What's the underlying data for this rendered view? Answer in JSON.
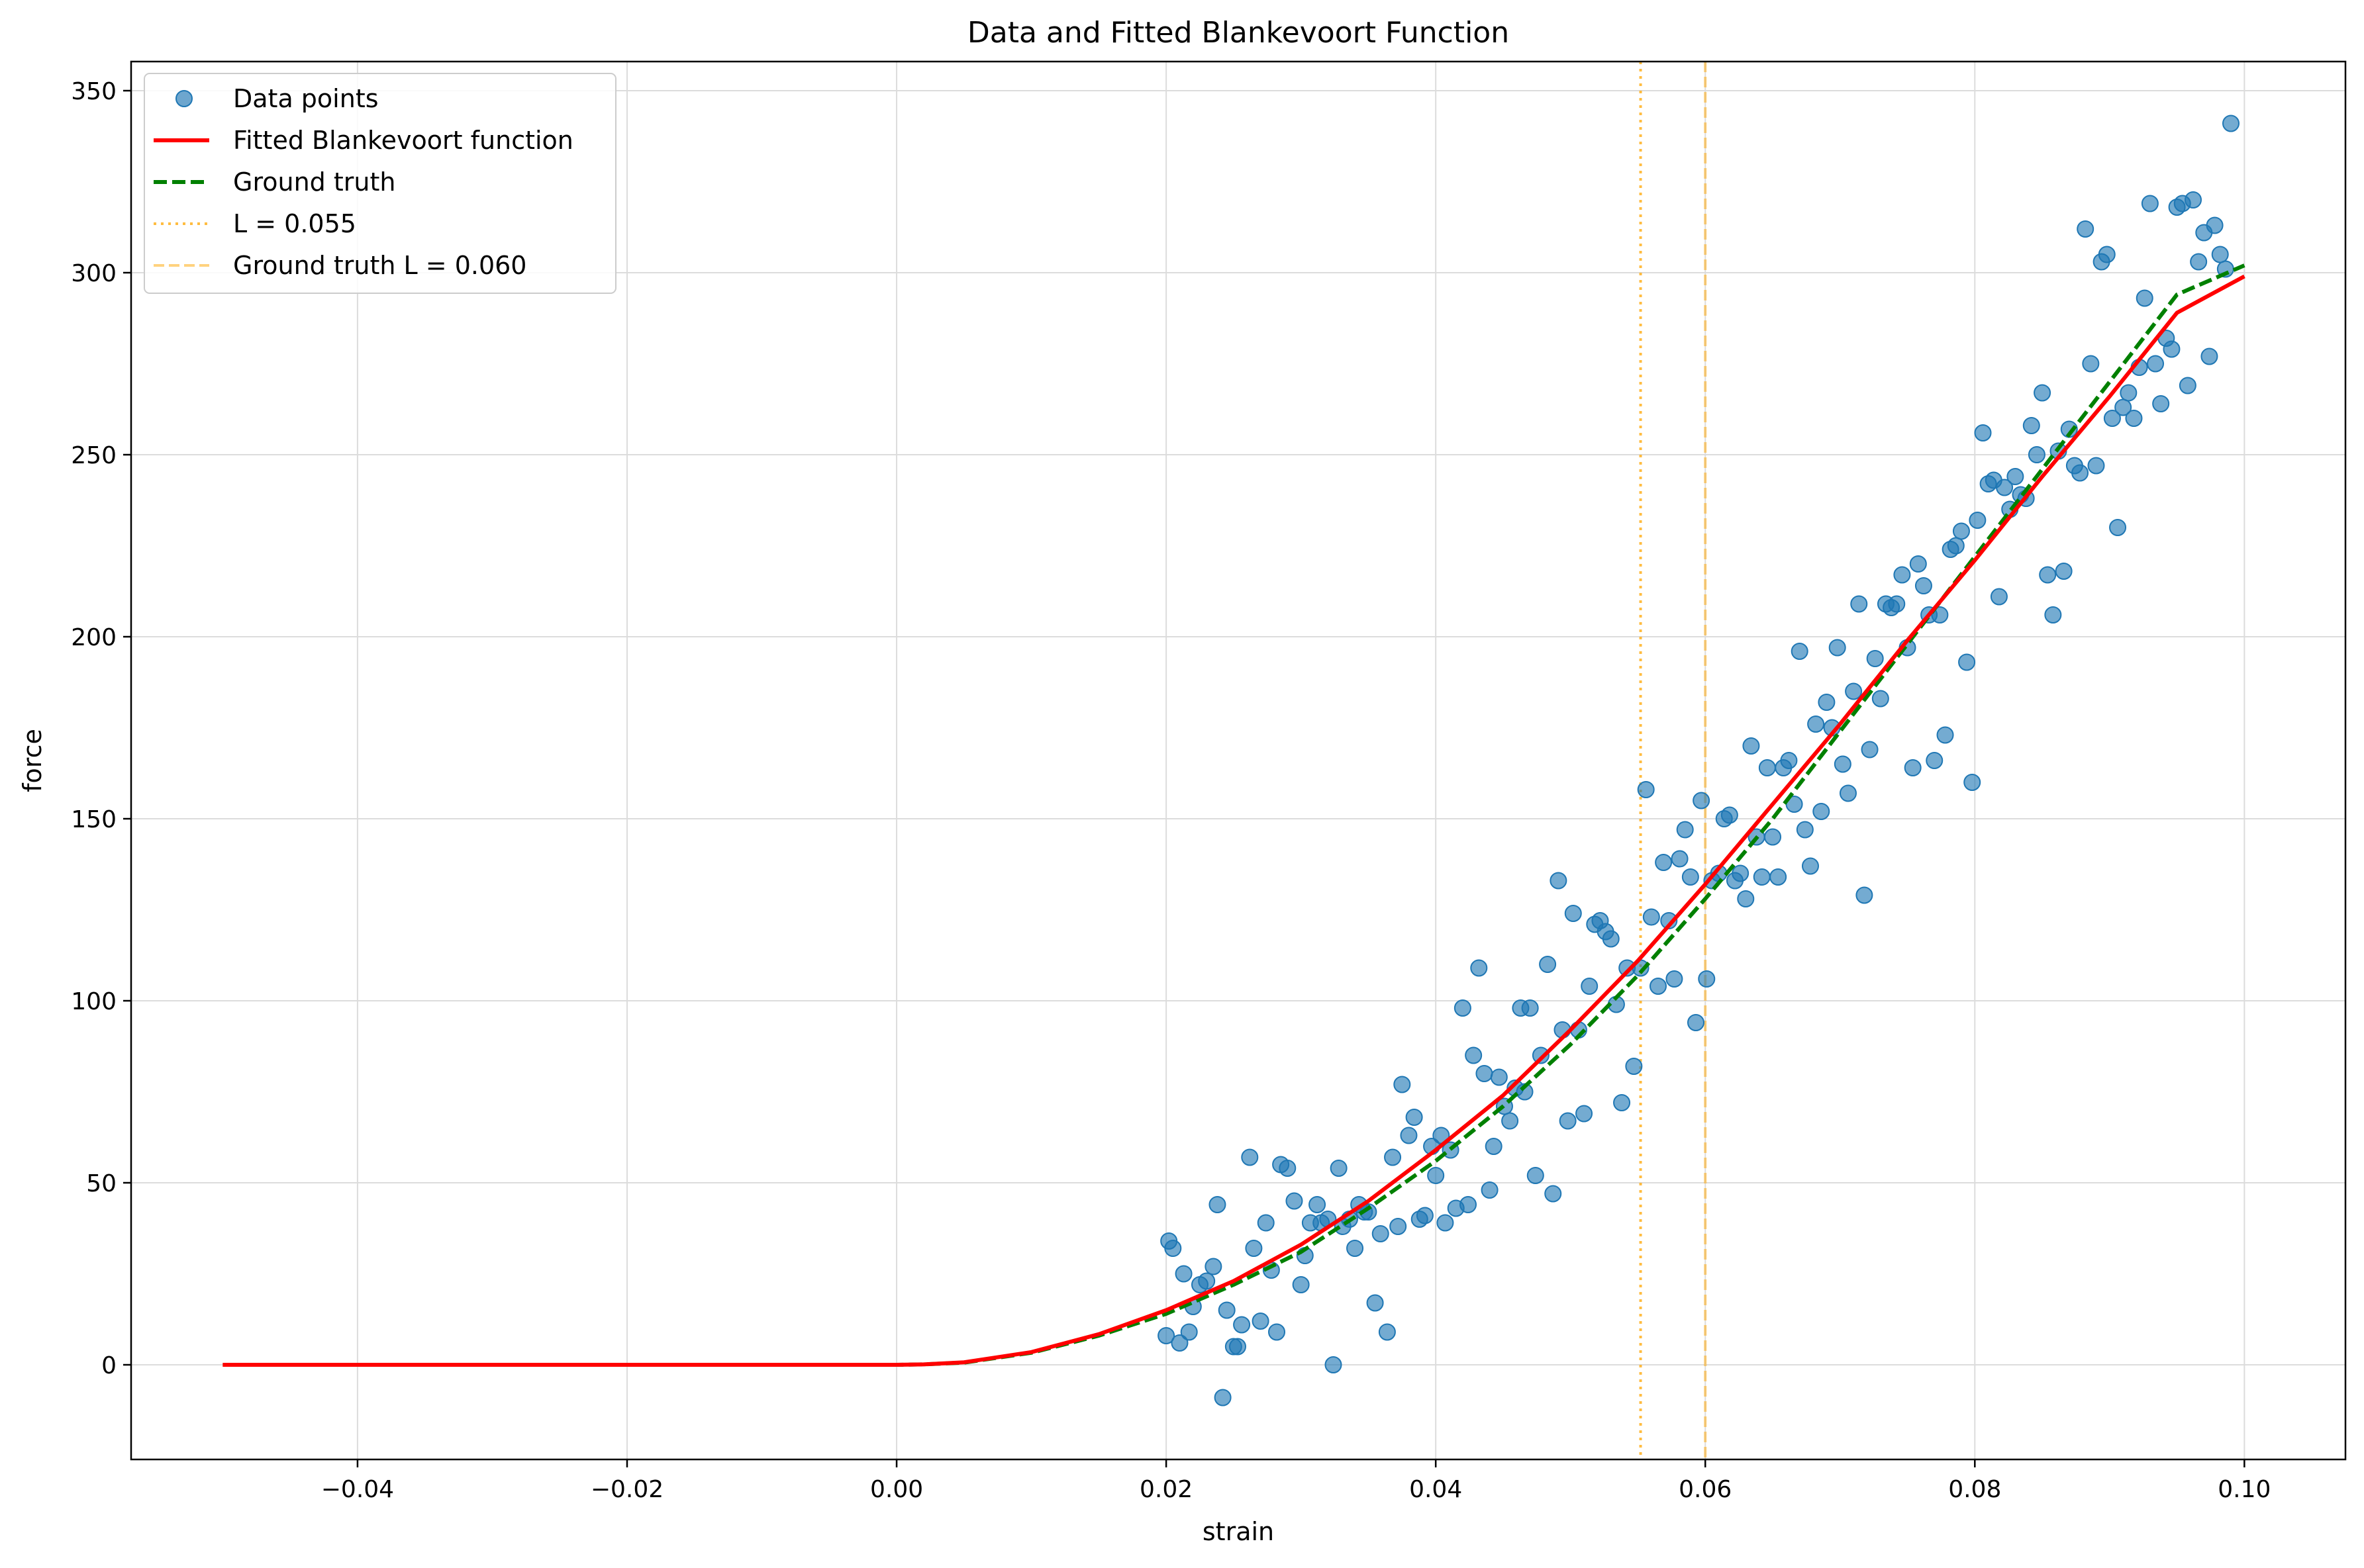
{
  "chart_data": {
    "type": "scatter",
    "title": "Data and Fitted Blankevoort Function",
    "xlabel": "strain",
    "ylabel": "force",
    "xlim": [
      -0.0568,
      0.1075
    ],
    "ylim": [
      -26,
      358
    ],
    "x_ticks": [
      -0.04,
      -0.02,
      0.0,
      0.02,
      0.04,
      0.06,
      0.08,
      0.1
    ],
    "x_tick_labels": [
      "−0.04",
      "−0.02",
      "0.00",
      "0.02",
      "0.04",
      "0.06",
      "0.08",
      "0.10"
    ],
    "y_ticks": [
      0,
      50,
      100,
      150,
      200,
      250,
      300,
      350
    ],
    "y_tick_labels": [
      "0",
      "50",
      "100",
      "150",
      "200",
      "250",
      "300",
      "350"
    ],
    "grid": true,
    "legend_position": "top-left",
    "legend": [
      {
        "label": "Data points",
        "kind": "marker",
        "color": "#1f77b4"
      },
      {
        "label": "Fitted Blankevoort function",
        "kind": "line",
        "color": "#ff0000",
        "dash": "solid"
      },
      {
        "label": "Ground truth",
        "kind": "line",
        "color": "#008000",
        "dash": "dashed"
      },
      {
        "label": "L = 0.055",
        "kind": "line",
        "color": "#ffa500",
        "dash": "dotted"
      },
      {
        "label": "Ground truth L = 0.060",
        "kind": "line",
        "color": "#ffa500",
        "dash": "dashed-light"
      }
    ],
    "series": [
      {
        "name": "Data points",
        "kind": "scatter",
        "color": "#1f77b4",
        "points": [
          [
            0.02,
            8
          ],
          [
            0.0202,
            34
          ],
          [
            0.0205,
            32
          ],
          [
            0.021,
            6
          ],
          [
            0.0213,
            25
          ],
          [
            0.0217,
            9
          ],
          [
            0.022,
            16
          ],
          [
            0.0225,
            22
          ],
          [
            0.023,
            23
          ],
          [
            0.0235,
            27
          ],
          [
            0.0238,
            44
          ],
          [
            0.0242,
            -9
          ],
          [
            0.0245,
            15
          ],
          [
            0.025,
            5
          ],
          [
            0.0253,
            5
          ],
          [
            0.0256,
            11
          ],
          [
            0.0262,
            57
          ],
          [
            0.0265,
            32
          ],
          [
            0.027,
            12
          ],
          [
            0.0274,
            39
          ],
          [
            0.0278,
            26
          ],
          [
            0.0282,
            9
          ],
          [
            0.0285,
            55
          ],
          [
            0.029,
            54
          ],
          [
            0.0295,
            45
          ],
          [
            0.03,
            22
          ],
          [
            0.0303,
            30
          ],
          [
            0.0307,
            39
          ],
          [
            0.0312,
            44
          ],
          [
            0.0315,
            39
          ],
          [
            0.032,
            40
          ],
          [
            0.0324,
            0
          ],
          [
            0.0328,
            54
          ],
          [
            0.0331,
            38
          ],
          [
            0.0336,
            40
          ],
          [
            0.034,
            32
          ],
          [
            0.0343,
            44
          ],
          [
            0.0347,
            42
          ],
          [
            0.035,
            42
          ],
          [
            0.0355,
            17
          ],
          [
            0.0359,
            36
          ],
          [
            0.0364,
            9
          ],
          [
            0.0368,
            57
          ],
          [
            0.0372,
            38
          ],
          [
            0.0375,
            77
          ],
          [
            0.038,
            63
          ],
          [
            0.0384,
            68
          ],
          [
            0.0388,
            40
          ],
          [
            0.0392,
            41
          ],
          [
            0.0397,
            60
          ],
          [
            0.04,
            52
          ],
          [
            0.0404,
            63
          ],
          [
            0.0407,
            39
          ],
          [
            0.0411,
            59
          ],
          [
            0.0415,
            43
          ],
          [
            0.042,
            98
          ],
          [
            0.0424,
            44
          ],
          [
            0.0428,
            85
          ],
          [
            0.0432,
            109
          ],
          [
            0.0436,
            80
          ],
          [
            0.044,
            48
          ],
          [
            0.0443,
            60
          ],
          [
            0.0447,
            79
          ],
          [
            0.0451,
            71
          ],
          [
            0.0455,
            67
          ],
          [
            0.0459,
            76
          ],
          [
            0.0463,
            98
          ],
          [
            0.0466,
            75
          ],
          [
            0.047,
            98
          ],
          [
            0.0474,
            52
          ],
          [
            0.0478,
            85
          ],
          [
            0.0483,
            110
          ],
          [
            0.0487,
            47
          ],
          [
            0.0491,
            133
          ],
          [
            0.0494,
            92
          ],
          [
            0.0498,
            67
          ],
          [
            0.0502,
            124
          ],
          [
            0.0506,
            92
          ],
          [
            0.051,
            69
          ],
          [
            0.0514,
            104
          ],
          [
            0.0518,
            121
          ],
          [
            0.0522,
            122
          ],
          [
            0.0526,
            119
          ],
          [
            0.053,
            117
          ],
          [
            0.0534,
            99
          ],
          [
            0.0538,
            72
          ],
          [
            0.0542,
            109
          ],
          [
            0.0547,
            82
          ],
          [
            0.0552,
            109
          ],
          [
            0.0556,
            158
          ],
          [
            0.056,
            123
          ],
          [
            0.0565,
            104
          ],
          [
            0.0569,
            138
          ],
          [
            0.0573,
            122
          ],
          [
            0.0577,
            106
          ],
          [
            0.0581,
            139
          ],
          [
            0.0585,
            147
          ],
          [
            0.0589,
            134
          ],
          [
            0.0593,
            94
          ],
          [
            0.0597,
            155
          ],
          [
            0.0601,
            106
          ],
          [
            0.0605,
            133
          ],
          [
            0.061,
            135
          ],
          [
            0.0614,
            150
          ],
          [
            0.0618,
            151
          ],
          [
            0.0622,
            133
          ],
          [
            0.0626,
            135
          ],
          [
            0.063,
            128
          ],
          [
            0.0634,
            170
          ],
          [
            0.0638,
            145
          ],
          [
            0.0642,
            134
          ],
          [
            0.0646,
            164
          ],
          [
            0.065,
            145
          ],
          [
            0.0654,
            134
          ],
          [
            0.0658,
            164
          ],
          [
            0.0662,
            166
          ],
          [
            0.0666,
            154
          ],
          [
            0.067,
            196
          ],
          [
            0.0674,
            147
          ],
          [
            0.0678,
            137
          ],
          [
            0.0682,
            176
          ],
          [
            0.0686,
            152
          ],
          [
            0.069,
            182
          ],
          [
            0.0694,
            175
          ],
          [
            0.0698,
            197
          ],
          [
            0.0702,
            165
          ],
          [
            0.0706,
            157
          ],
          [
            0.071,
            185
          ],
          [
            0.0714,
            209
          ],
          [
            0.0718,
            129
          ],
          [
            0.0722,
            169
          ],
          [
            0.0726,
            194
          ],
          [
            0.073,
            183
          ],
          [
            0.0734,
            209
          ],
          [
            0.0738,
            208
          ],
          [
            0.0742,
            209
          ],
          [
            0.0746,
            217
          ],
          [
            0.075,
            197
          ],
          [
            0.0754,
            164
          ],
          [
            0.0758,
            220
          ],
          [
            0.0762,
            214
          ],
          [
            0.0766,
            206
          ],
          [
            0.077,
            166
          ],
          [
            0.0774,
            206
          ],
          [
            0.0778,
            173
          ],
          [
            0.0782,
            224
          ],
          [
            0.0786,
            225
          ],
          [
            0.079,
            229
          ],
          [
            0.0794,
            193
          ],
          [
            0.0798,
            160
          ],
          [
            0.0802,
            232
          ],
          [
            0.0806,
            256
          ],
          [
            0.081,
            242
          ],
          [
            0.0814,
            243
          ],
          [
            0.0818,
            211
          ],
          [
            0.0822,
            241
          ],
          [
            0.0826,
            235
          ],
          [
            0.083,
            244
          ],
          [
            0.0834,
            239
          ],
          [
            0.0838,
            238
          ],
          [
            0.0842,
            258
          ],
          [
            0.0846,
            250
          ],
          [
            0.085,
            267
          ],
          [
            0.0854,
            217
          ],
          [
            0.0858,
            206
          ],
          [
            0.0862,
            251
          ],
          [
            0.0866,
            218
          ],
          [
            0.087,
            257
          ],
          [
            0.0874,
            247
          ],
          [
            0.0878,
            245
          ],
          [
            0.0882,
            312
          ],
          [
            0.0886,
            275
          ],
          [
            0.089,
            247
          ],
          [
            0.0894,
            303
          ],
          [
            0.0898,
            305
          ],
          [
            0.0902,
            260
          ],
          [
            0.0906,
            230
          ],
          [
            0.091,
            263
          ],
          [
            0.0914,
            267
          ],
          [
            0.0918,
            260
          ],
          [
            0.0922,
            274
          ],
          [
            0.0926,
            293
          ],
          [
            0.093,
            319
          ],
          [
            0.0934,
            275
          ],
          [
            0.0938,
            264
          ],
          [
            0.0942,
            282
          ],
          [
            0.0946,
            279
          ],
          [
            0.095,
            318
          ],
          [
            0.0954,
            319
          ],
          [
            0.0958,
            269
          ],
          [
            0.0962,
            320
          ],
          [
            0.0966,
            303
          ],
          [
            0.097,
            311
          ],
          [
            0.0974,
            277
          ],
          [
            0.0978,
            313
          ],
          [
            0.0982,
            305
          ],
          [
            0.0986,
            301
          ],
          [
            0.099,
            341
          ]
        ]
      },
      {
        "name": "Fitted Blankevoort function",
        "kind": "line",
        "color": "#ff0000",
        "points": [
          [
            -0.05,
            0
          ],
          [
            0.0,
            0
          ],
          [
            0.002,
            0.1
          ],
          [
            0.005,
            0.7
          ],
          [
            0.01,
            3.5
          ],
          [
            0.015,
            8.4
          ],
          [
            0.02,
            15
          ],
          [
            0.025,
            23
          ],
          [
            0.03,
            33
          ],
          [
            0.035,
            45
          ],
          [
            0.04,
            59
          ],
          [
            0.045,
            74
          ],
          [
            0.05,
            92
          ],
          [
            0.055,
            111
          ],
          [
            0.06,
            132
          ],
          [
            0.065,
            154
          ],
          [
            0.07,
            176
          ],
          [
            0.075,
            199
          ],
          [
            0.08,
            221
          ],
          [
            0.085,
            244
          ],
          [
            0.09,
            266
          ],
          [
            0.095,
            289
          ],
          [
            0.1,
            299
          ]
        ]
      },
      {
        "name": "Ground truth",
        "kind": "line",
        "color": "#008000",
        "points": [
          [
            -0.05,
            0
          ],
          [
            0.0,
            0
          ],
          [
            0.002,
            0.1
          ],
          [
            0.005,
            0.6
          ],
          [
            0.01,
            3.3
          ],
          [
            0.015,
            8
          ],
          [
            0.02,
            14
          ],
          [
            0.025,
            22
          ],
          [
            0.03,
            31
          ],
          [
            0.035,
            43
          ],
          [
            0.04,
            56
          ],
          [
            0.045,
            71
          ],
          [
            0.05,
            88
          ],
          [
            0.055,
            107
          ],
          [
            0.06,
            128
          ],
          [
            0.065,
            150
          ],
          [
            0.07,
            174
          ],
          [
            0.075,
            198
          ],
          [
            0.08,
            222
          ],
          [
            0.085,
            246
          ],
          [
            0.09,
            270
          ],
          [
            0.095,
            294
          ],
          [
            0.1,
            302
          ]
        ]
      }
    ],
    "vlines": [
      {
        "name": "L = 0.055",
        "x": 0.0552,
        "color": "#ffa500",
        "style": "dotted"
      },
      {
        "name": "Ground truth L = 0.060",
        "x": 0.06,
        "color": "#ffa500",
        "style": "dashed-light"
      }
    ]
  }
}
